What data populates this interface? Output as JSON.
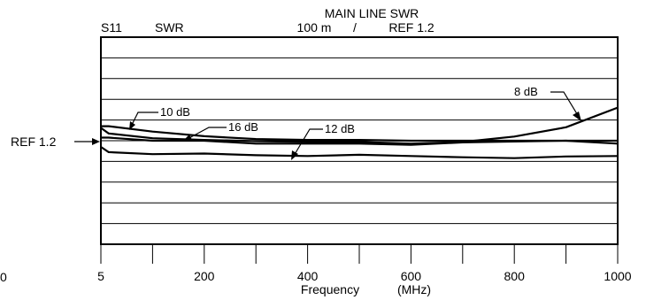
{
  "chart_data": {
    "type": "line",
    "header": {
      "left_label": "S11",
      "mode_label": "SWR",
      "title": "MAIN LINE SWR",
      "scale": "100 m",
      "separator": "/",
      "ref": "REF 1.2"
    },
    "ref_marker": "REF 1.2",
    "stray_label": "0",
    "xlabel": "Frequency",
    "xunit": "(MHz)",
    "xlim": [
      5,
      1000
    ],
    "ylim": [
      0.7,
      1.7
    ],
    "x_ticks": [
      5,
      100,
      200,
      300,
      400,
      500,
      600,
      700,
      800,
      900,
      1000
    ],
    "x_tick_labels": [
      {
        "value": 5,
        "label": "5"
      },
      {
        "value": 200,
        "label": "200"
      },
      {
        "value": 400,
        "label": "400"
      },
      {
        "value": 600,
        "label": "600"
      },
      {
        "value": 800,
        "label": "800"
      },
      {
        "value": 1000,
        "label": "1000"
      }
    ],
    "grid": true,
    "series": [
      {
        "name": "8 dB",
        "x": [
          5,
          15,
          100,
          200,
          300,
          400,
          500,
          600,
          700,
          800,
          900,
          1000
        ],
        "y": [
          1.262,
          1.235,
          1.212,
          1.204,
          1.198,
          1.194,
          1.194,
          1.186,
          1.194,
          1.22,
          1.265,
          1.36
        ]
      },
      {
        "name": "10 dB",
        "x": [
          5,
          15,
          100,
          200,
          300,
          400,
          500,
          600,
          700,
          800,
          900,
          1000
        ],
        "y": [
          1.27,
          1.27,
          1.244,
          1.222,
          1.208,
          1.204,
          1.204,
          1.2,
          1.2,
          1.2,
          1.2,
          1.2
        ]
      },
      {
        "name": "16 dB",
        "x": [
          5,
          15,
          100,
          200,
          300,
          400,
          500,
          600,
          700,
          800,
          900,
          1000
        ],
        "y": [
          1.215,
          1.215,
          1.2,
          1.2,
          1.186,
          1.186,
          1.186,
          1.18,
          1.192,
          1.196,
          1.2,
          1.186
        ]
      },
      {
        "name": "12 dB",
        "x": [
          5,
          15,
          100,
          200,
          300,
          400,
          500,
          600,
          700,
          800,
          900,
          1000
        ],
        "y": [
          1.17,
          1.145,
          1.135,
          1.138,
          1.13,
          1.126,
          1.132,
          1.126,
          1.12,
          1.116,
          1.124,
          1.126
        ]
      }
    ]
  }
}
